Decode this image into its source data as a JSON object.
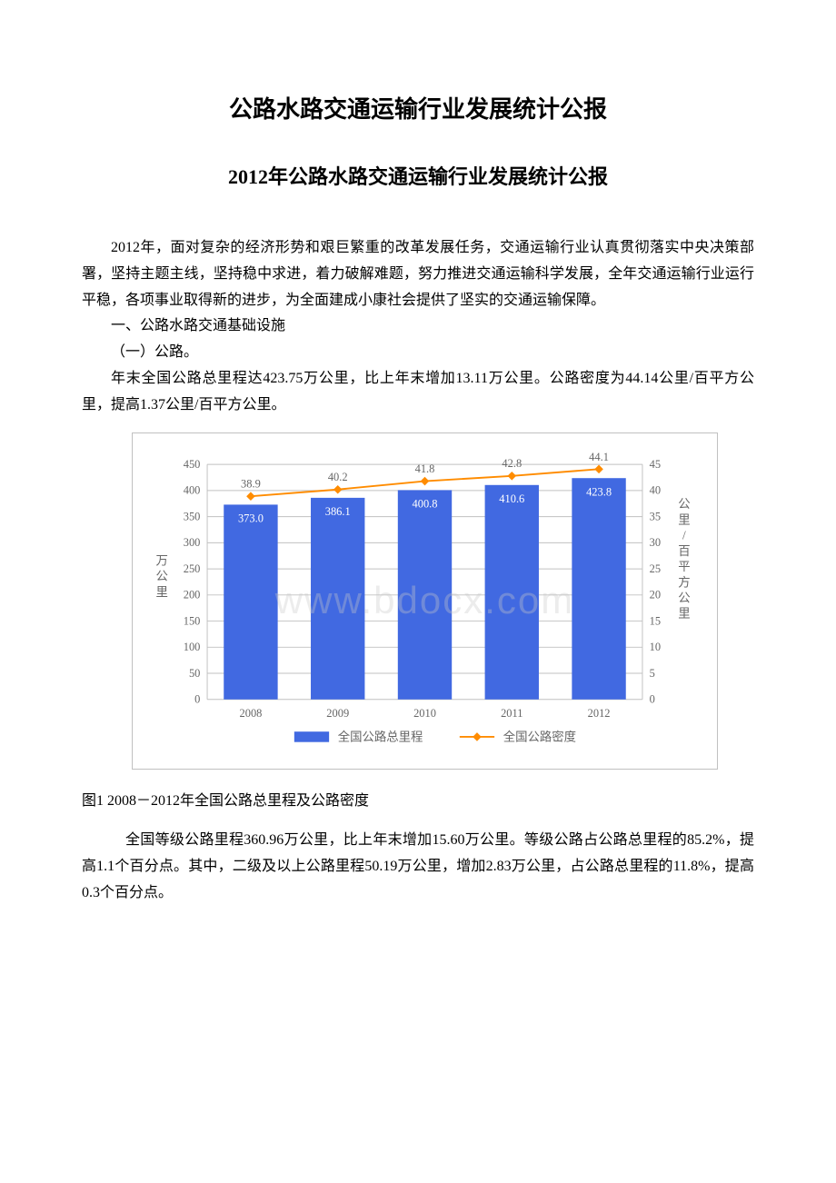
{
  "title": "公路水路交通运输行业发展统计公报",
  "subtitle": "2012年公路水路交通运输行业发展统计公报",
  "para1": "2012年，面对复杂的经济形势和艰巨繁重的改革发展任务，交通运输行业认真贯彻落实中央决策部署，坚持主题主线，坚持稳中求进，着力破解难题，努力推进交通运输科学发展，全年交通运输行业运行平稳，各项事业取得新的进步，为全面建成小康社会提供了坚实的交通运输保障。",
  "section1": "一、公路水路交通基础设施",
  "subsection1": "（一）公路。",
  "para2": "年末全国公路总里程达423.75万公里，比上年末增加13.11万公里。公路密度为44.14公里/百平方公里，提高1.37公里/百平方公里。",
  "chart_caption": "图1  2008－2012年全国公路总里程及公路密度",
  "para3": "全国等级公路里程360.96万公里，比上年末增加15.60万公里。等级公路占公路总里程的85.2%，提高1.1个百分点。其中，二级及以上公路里程50.19万公里，增加2.83万公里，占公路总里程的11.8%，提高0.3个百分点。",
  "watermark": "www.bdocx.com",
  "chart": {
    "type": "bar_line_combo",
    "categories": [
      "2008",
      "2009",
      "2010",
      "2011",
      "2012"
    ],
    "bar_series": {
      "name": "全国公路总里程",
      "values": [
        373.0,
        386.1,
        400.8,
        410.6,
        423.8
      ],
      "labels": [
        "373.0",
        "386.1",
        "400.8",
        "410.6",
        "423.8"
      ],
      "color": "#4169e1"
    },
    "line_series": {
      "name": "全国公路密度",
      "values": [
        38.9,
        40.2,
        41.8,
        42.8,
        44.1
      ],
      "labels": [
        "38.9",
        "40.2",
        "41.8",
        "42.8",
        "44.1"
      ],
      "color": "#ff8c00",
      "marker": "diamond"
    },
    "left_axis": {
      "label": "万公里",
      "min": 0,
      "max": 450,
      "step": 50,
      "ticks": [
        "0",
        "50",
        "100",
        "150",
        "200",
        "250",
        "300",
        "350",
        "400",
        "450"
      ]
    },
    "right_axis": {
      "label": "公里/百平方公里",
      "min": 0,
      "max": 45,
      "step": 5,
      "ticks": [
        "0",
        "5",
        "10",
        "15",
        "20",
        "25",
        "30",
        "35",
        "40",
        "45"
      ]
    },
    "grid_color": "#c0c0c0",
    "text_color": "#666666",
    "font_size": 13,
    "plot_bg": "#ffffff"
  }
}
